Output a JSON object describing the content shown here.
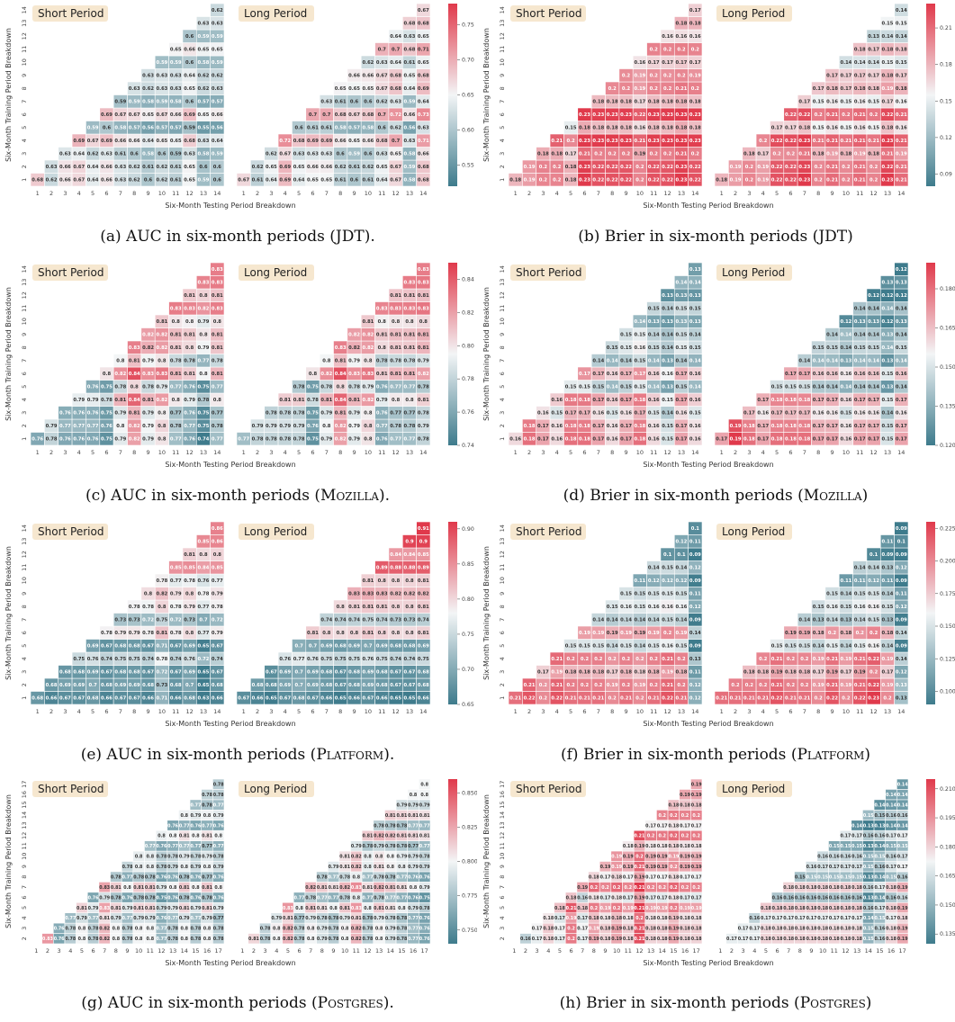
{
  "common": {
    "short_title": "Short Period",
    "long_title": "Long Period",
    "xlabel": "Six-Month Testing Period Breakdown",
    "ylabel": "Six-Month Training Period Breakdown",
    "title_bg": "#f6e7cf",
    "cmap": [
      "#3e7b8c",
      "#f3f5f6",
      "#e0394b"
    ]
  },
  "captions": [
    {
      "pre": "(a) AUC in six-month periods (",
      "proj": "JDT",
      "post": ")."
    },
    {
      "pre": "(b) Brier in six-month periods (",
      "proj": "JDT",
      "post": ")"
    },
    {
      "pre": "(c) AUC in six-month periods (",
      "proj": "Mozilla",
      "post": ")."
    },
    {
      "pre": "(d) Brier in six-month periods (",
      "proj": "Mozilla",
      "post": ")"
    },
    {
      "pre": "(e) AUC in six-month periods (",
      "proj": "Platform",
      "post": ")."
    },
    {
      "pre": "(f) Brier in six-month periods (",
      "proj": "Platform",
      "post": ")"
    },
    {
      "pre": "(g) AUC in six-month periods (",
      "proj": "Postgres",
      "post": ")."
    },
    {
      "pre": "(h) Brier in six-month periods (",
      "proj": "Postgres",
      "post": ")"
    }
  ],
  "chart_data": [
    {
      "type": "heatmap",
      "metric": "AUC",
      "project": "JDT",
      "x": [
        1,
        2,
        3,
        4,
        5,
        6,
        7,
        8,
        9,
        10,
        11,
        12,
        13,
        14
      ],
      "y": [
        1,
        2,
        3,
        4,
        5,
        6,
        7,
        8,
        9,
        10,
        11,
        12,
        13,
        14
      ],
      "vmin": 0.52,
      "vmax": 0.78,
      "colorbar_ticks": [
        "0.55",
        "0.60",
        "0.65",
        "0.70",
        "0.75"
      ],
      "short_first_row": [
        0.68,
        0.62,
        0.66,
        0.67,
        0.64,
        0.66,
        0.63,
        0.62,
        0.6,
        0.62,
        0.61,
        0.65,
        0.59,
        0.6
      ],
      "short_top": 0.62,
      "long_top": 0.67,
      "long_first_row": [
        0.67,
        0.61,
        0.64,
        0.69,
        0.64,
        0.65,
        0.65,
        0.61,
        0.6,
        0.61,
        0.64,
        0.67,
        0.58,
        0.68
      ]
    },
    {
      "type": "heatmap",
      "metric": "Brier",
      "project": "JDT",
      "x": [
        1,
        2,
        3,
        4,
        5,
        6,
        7,
        8,
        9,
        10,
        11,
        12,
        13,
        14
      ],
      "y": [
        1,
        2,
        3,
        4,
        5,
        6,
        7,
        8,
        9,
        10,
        11,
        12,
        13,
        14
      ],
      "vmin": 0.08,
      "vmax": 0.23,
      "colorbar_ticks": [
        "0.09",
        "0.12",
        "0.15",
        "0.18",
        "0.21"
      ],
      "short_first_row": [
        0.18,
        0.19,
        0.2,
        0.2,
        0.18,
        0.23,
        0.22,
        0.22,
        0.22,
        0.2,
        0.22,
        0.22,
        0.23,
        0.22
      ],
      "short_top": 0.17,
      "long_top": 0.14,
      "long_first_row": [
        0.18,
        0.19,
        0.2,
        0.19,
        0.22,
        0.22,
        0.23,
        0.2,
        0.21,
        0.2,
        0.21,
        0.2,
        0.23,
        0.21
      ]
    },
    {
      "type": "heatmap",
      "metric": "AUC",
      "project": "Mozilla",
      "x": [
        1,
        2,
        3,
        4,
        5,
        6,
        7,
        8,
        9,
        10,
        11,
        12,
        13,
        14
      ],
      "y": [
        1,
        2,
        3,
        4,
        5,
        6,
        7,
        8,
        9,
        10,
        11,
        12,
        13,
        14
      ],
      "vmin": 0.74,
      "vmax": 0.85,
      "colorbar_ticks": [
        "0.74",
        "0.76",
        "0.78",
        "0.80",
        "0.82",
        "0.84"
      ],
      "short_first_row": [
        0.76,
        0.78,
        0.76,
        0.76,
        0.76,
        0.75,
        0.79,
        0.82,
        0.79,
        0.8,
        0.77,
        0.76,
        0.74,
        0.77
      ],
      "short_top": 0.83,
      "long_top": 0.83,
      "long_first_row": [
        0.77,
        0.78,
        0.78,
        0.78,
        0.78,
        0.75,
        0.79,
        0.82,
        0.79,
        0.8,
        0.76,
        0.77,
        0.77,
        0.78
      ]
    },
    {
      "type": "heatmap",
      "metric": "Brier",
      "project": "Mozilla",
      "x": [
        1,
        2,
        3,
        4,
        5,
        6,
        7,
        8,
        9,
        10,
        11,
        12,
        13,
        14
      ],
      "y": [
        1,
        2,
        3,
        4,
        5,
        6,
        7,
        8,
        9,
        10,
        11,
        12,
        13,
        14
      ],
      "vmin": 0.12,
      "vmax": 0.19,
      "colorbar_ticks": [
        "0.120",
        "0.135",
        "0.150",
        "0.165",
        "0.180"
      ],
      "short_first_row": [
        0.16,
        0.18,
        0.17,
        0.16,
        0.18,
        0.18,
        0.17,
        0.16,
        0.17,
        0.18,
        0.16,
        0.15,
        0.17,
        0.16
      ],
      "short_top": 0.13,
      "long_top": 0.12,
      "long_first_row": [
        0.17,
        0.19,
        0.18,
        0.17,
        0.18,
        0.18,
        0.18,
        0.17,
        0.17,
        0.16,
        0.17,
        0.17,
        0.15,
        0.17
      ]
    },
    {
      "type": "heatmap",
      "metric": "AUC",
      "project": "Platform",
      "x": [
        1,
        2,
        3,
        4,
        5,
        6,
        7,
        8,
        9,
        10,
        11,
        12,
        13,
        14
      ],
      "y": [
        1,
        2,
        3,
        4,
        5,
        6,
        7,
        8,
        9,
        10,
        11,
        12,
        13,
        14
      ],
      "vmin": 0.65,
      "vmax": 0.91,
      "colorbar_ticks": [
        "0.65",
        "0.70",
        "0.75",
        "0.80",
        "0.85",
        "0.90"
      ],
      "short_first_row": [
        0.68,
        0.66,
        0.67,
        0.67,
        0.68,
        0.66,
        0.67,
        0.67,
        0.66,
        0.71,
        0.66,
        0.68,
        0.63,
        0.66
      ],
      "short_top": 0.86,
      "long_top": 0.91,
      "long_first_row": [
        0.67,
        0.66,
        0.65,
        0.67,
        0.68,
        0.67,
        0.66,
        0.65,
        0.66,
        0.67,
        0.66,
        0.65,
        0.65,
        0.66
      ]
    },
    {
      "type": "heatmap",
      "metric": "Brier",
      "project": "Platform",
      "x": [
        1,
        2,
        3,
        4,
        5,
        6,
        7,
        8,
        9,
        10,
        11,
        12,
        13,
        14
      ],
      "y": [
        1,
        2,
        3,
        4,
        5,
        6,
        7,
        8,
        9,
        10,
        11,
        12,
        13,
        14
      ],
      "vmin": 0.09,
      "vmax": 0.23,
      "colorbar_ticks": [
        "0.100",
        "0.125",
        "0.150",
        "0.175",
        "0.200",
        "0.225"
      ],
      "short_first_row": [
        0.21,
        0.22,
        0.2,
        0.22,
        0.21,
        0.21,
        0.21,
        0.2,
        0.21,
        0.2,
        0.21,
        0.22,
        0.21,
        0.12
      ],
      "short_top": 0.1,
      "long_top": 0.09,
      "long_first_row": [
        0.21,
        0.21,
        0.21,
        0.21,
        0.22,
        0.21,
        0.21,
        0.2,
        0.22,
        0.2,
        0.22,
        0.23,
        0.2,
        0.13
      ]
    },
    {
      "type": "heatmap",
      "metric": "AUC",
      "project": "Postgres",
      "x": [
        1,
        2,
        3,
        4,
        5,
        6,
        7,
        8,
        9,
        10,
        11,
        12,
        13,
        14,
        15,
        16,
        17
      ],
      "y": [
        2,
        3,
        4,
        5,
        6,
        7,
        8,
        9,
        10,
        11,
        12,
        13,
        14,
        15,
        16,
        17
      ],
      "vmin": 0.74,
      "vmax": 0.86,
      "colorbar_ticks": [
        "0.750",
        "0.775",
        "0.800",
        "0.825",
        "0.850"
      ],
      "short_first_row": [
        0.83,
        0.76,
        0.78,
        0.8,
        0.78,
        0.82,
        0.8,
        0.78,
        0.8,
        0.8,
        0.77,
        0.78,
        0.8,
        0.78,
        0.8,
        0.78
      ],
      "short_top": 0.78,
      "long_top": 0.8,
      "long_first_row": [
        0.81,
        0.78,
        0.8,
        0.82,
        0.78,
        0.8,
        0.79,
        0.78,
        0.8,
        0.82,
        0.78,
        0.8,
        0.79,
        0.78,
        0.77,
        0.76
      ]
    },
    {
      "type": "heatmap",
      "metric": "Brier",
      "project": "Postgres",
      "x": [
        1,
        2,
        3,
        4,
        5,
        6,
        7,
        8,
        9,
        10,
        11,
        12,
        13,
        14,
        15,
        16,
        17
      ],
      "y": [
        2,
        3,
        4,
        5,
        6,
        7,
        8,
        9,
        10,
        11,
        12,
        13,
        14,
        15,
        16,
        17
      ],
      "vmin": 0.13,
      "vmax": 0.215,
      "colorbar_ticks": [
        "0.135",
        "0.150",
        "0.165",
        "0.180",
        "0.195",
        "0.210"
      ],
      "short_first_row": [
        0.16,
        0.17,
        0.18,
        0.17,
        0.2,
        0.17,
        0.19,
        0.18,
        0.19,
        0.18,
        0.21,
        0.18,
        0.18,
        0.19,
        0.18,
        0.18
      ],
      "short_top": 0.19,
      "long_top": 0.14,
      "long_first_row": [
        0.17,
        0.17,
        0.17,
        0.18,
        0.18,
        0.18,
        0.18,
        0.18,
        0.18,
        0.18,
        0.18,
        0.18,
        0.15,
        0.16,
        0.18,
        0.19
      ]
    }
  ]
}
